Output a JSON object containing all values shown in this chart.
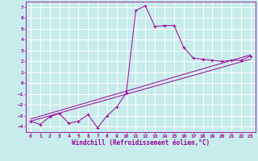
{
  "xlabel": "Windchill (Refroidissement éolien,°C)",
  "bg_color": "#c8ecec",
  "grid_color": "#ffffff",
  "line_color": "#990099",
  "xlim": [
    -0.5,
    23.5
  ],
  "ylim": [
    -4.5,
    7.5
  ],
  "yticks": [
    -4,
    -3,
    -2,
    -1,
    0,
    1,
    2,
    3,
    4,
    5,
    6,
    7
  ],
  "xticks": [
    0,
    1,
    2,
    3,
    4,
    5,
    6,
    7,
    8,
    9,
    10,
    11,
    12,
    13,
    14,
    15,
    16,
    17,
    18,
    19,
    20,
    21,
    22,
    23
  ],
  "main_series_x": [
    0,
    1,
    2,
    3,
    4,
    5,
    6,
    7,
    8,
    9,
    10,
    11,
    12,
    13,
    14,
    15,
    16,
    17,
    18,
    19,
    20,
    21,
    22,
    23
  ],
  "main_series_y": [
    -3.5,
    -3.8,
    -3.1,
    -2.8,
    -3.7,
    -3.5,
    -2.9,
    -4.1,
    -3.0,
    -2.2,
    -0.9,
    6.7,
    7.1,
    5.2,
    5.3,
    5.3,
    3.3,
    2.3,
    2.2,
    2.1,
    2.0,
    2.1,
    2.1,
    2.5
  ],
  "trend1_x": [
    0,
    23
  ],
  "trend1_y": [
    -3.5,
    2.2
  ],
  "trend2_x": [
    0,
    23
  ],
  "trend2_y": [
    -3.3,
    2.6
  ],
  "font_size_label": 5.5,
  "font_size_tick": 4.5
}
